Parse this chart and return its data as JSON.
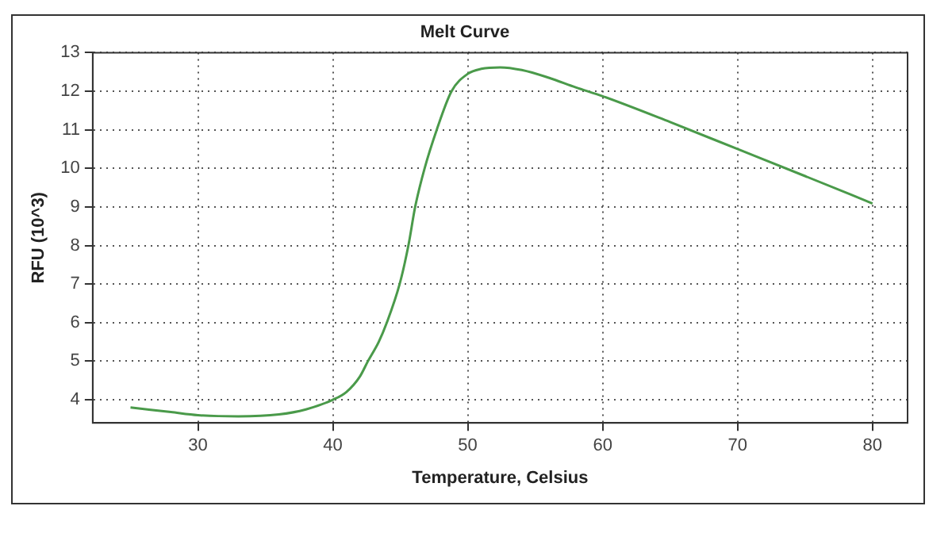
{
  "chart_data": {
    "type": "line",
    "title": "Melt Curve",
    "xlabel": "Temperature, Celsius",
    "ylabel": "RFU (10^3)",
    "x": [
      25,
      28,
      30,
      33,
      36,
      38,
      40,
      41,
      42,
      42.6,
      43.4,
      44,
      44.95,
      45.6,
      46.1,
      46.8,
      47.7,
      48.8,
      50,
      51,
      52.4,
      54,
      56,
      58,
      60,
      65,
      70,
      75,
      80
    ],
    "series": [
      {
        "color": "#4a9a4a",
        "values": [
          3.8,
          3.68,
          3.6,
          3.57,
          3.62,
          3.75,
          4.0,
          4.2,
          4.6,
          5.0,
          5.5,
          6.0,
          7.0,
          8.0,
          9.0,
          10.0,
          11.0,
          12.0,
          12.45,
          12.58,
          12.62,
          12.55,
          12.35,
          12.1,
          11.87,
          11.2,
          10.5,
          9.8,
          9.09
        ]
      }
    ],
    "xlim": [
      22.2,
      82.6
    ],
    "ylim": [
      3.4,
      13
    ],
    "xticks": [
      30,
      40,
      50,
      60,
      70,
      80
    ],
    "yticks": [
      4,
      5,
      6,
      7,
      8,
      9,
      10,
      11,
      12,
      13
    ],
    "grid": true,
    "legend": false,
    "marker": "none",
    "line_style": "solid"
  }
}
